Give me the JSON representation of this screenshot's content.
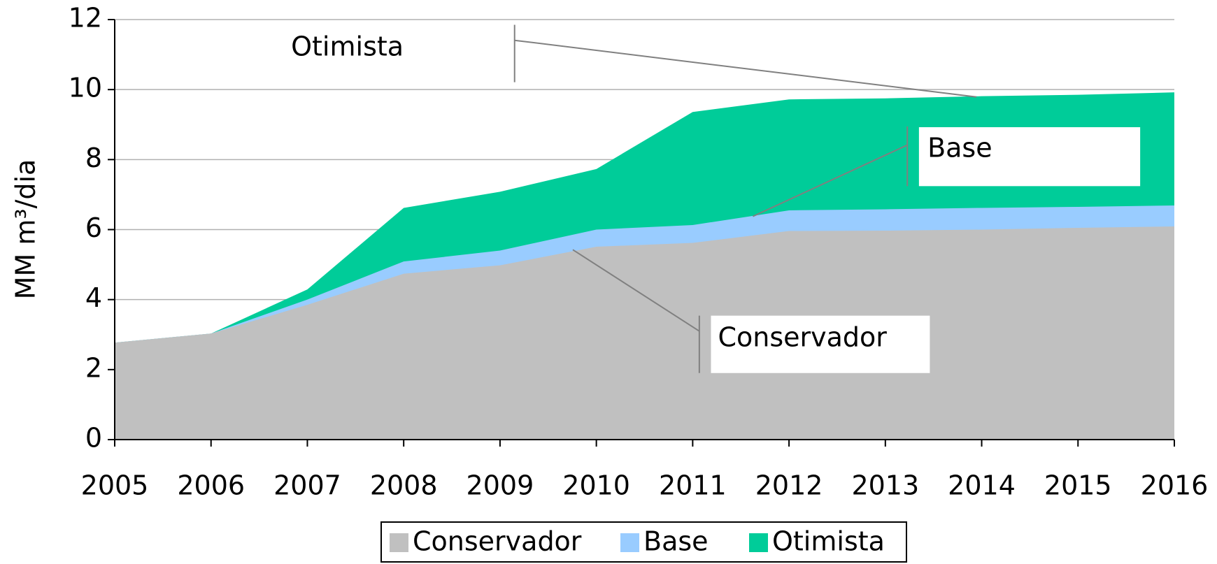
{
  "chart_data": {
    "type": "area",
    "y_label": "MM m³/dia",
    "x": [
      2005,
      2006,
      2007,
      2008,
      2009,
      2010,
      2011,
      2012,
      2013,
      2014,
      2015,
      2016
    ],
    "xlim": [
      2005,
      2016
    ],
    "xticks": [
      2005,
      2006,
      2007,
      2008,
      2009,
      2010,
      2011,
      2012,
      2013,
      2014,
      2015,
      2016
    ],
    "ylim": [
      0,
      12
    ],
    "yticks": [
      0,
      2,
      4,
      6,
      8,
      10,
      12
    ],
    "grid": true,
    "legend": "bottom",
    "series": [
      {
        "name": "Conservador",
        "color": "#c0c0c0",
        "values": [
          2.77,
          3.03,
          3.85,
          4.74,
          4.98,
          5.51,
          5.62,
          5.96,
          5.97,
          6.0,
          6.05,
          6.09
        ]
      },
      {
        "name": "Base",
        "color": "#99ccff",
        "values": [
          2.77,
          3.03,
          4.0,
          5.09,
          5.4,
          6.0,
          6.13,
          6.55,
          6.58,
          6.62,
          6.65,
          6.69
        ]
      },
      {
        "name": "Otimista",
        "color": "#00cc99",
        "values": [
          2.77,
          3.03,
          4.29,
          6.62,
          7.08,
          7.73,
          9.36,
          9.72,
          9.75,
          9.81,
          9.85,
          9.92
        ]
      }
    ],
    "annotations": [
      {
        "text": "Otimista",
        "color": "#008000"
      },
      {
        "text": "Base",
        "color": "#0000ff"
      },
      {
        "text": "Conservador",
        "color": "#000000"
      }
    ]
  }
}
